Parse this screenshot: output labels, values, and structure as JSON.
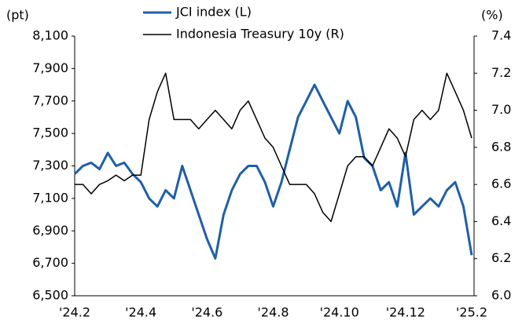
{
  "chart_data": {
    "type": "line",
    "y_unit": "(pt)",
    "y2_unit": "(%)",
    "categories": [
      "'24.2",
      null,
      null,
      null,
      null,
      null,
      null,
      null,
      "'24.4",
      null,
      null,
      null,
      null,
      null,
      null,
      null,
      "'24.6",
      null,
      null,
      null,
      null,
      null,
      null,
      null,
      "'24.8",
      null,
      null,
      null,
      null,
      null,
      null,
      null,
      "'24.10",
      null,
      null,
      null,
      null,
      null,
      null,
      null,
      "'24.12",
      null,
      null,
      null,
      null,
      null,
      null,
      null,
      "'25.2"
    ],
    "series": [
      {
        "name": "JCI index (L)",
        "color": "#1f5fa8",
        "axis": "y",
        "values": [
          7250,
          7300,
          7320,
          7280,
          7380,
          7300,
          7320,
          7250,
          7200,
          7100,
          7050,
          7150,
          7100,
          7300,
          7150,
          7000,
          6850,
          6730,
          7000,
          7150,
          7250,
          7300,
          7300,
          7200,
          7050,
          7200,
          7400,
          7600,
          7700,
          7800,
          7700,
          7600,
          7500,
          7700,
          7600,
          7350,
          7300,
          7150,
          7200,
          7050,
          7380,
          7000,
          7050,
          7100,
          7050,
          7150,
          7200,
          7050,
          6750
        ]
      },
      {
        "name": "Indonesia Treasury 10y (R)",
        "color": "#000000",
        "axis": "y2",
        "values": [
          6.6,
          6.6,
          6.55,
          6.6,
          6.62,
          6.65,
          6.62,
          6.65,
          6.65,
          6.95,
          7.1,
          7.2,
          6.95,
          6.95,
          6.95,
          6.9,
          6.95,
          7.0,
          6.95,
          6.9,
          7.0,
          7.05,
          6.95,
          6.85,
          6.8,
          6.7,
          6.6,
          6.6,
          6.6,
          6.55,
          6.45,
          6.4,
          6.55,
          6.7,
          6.75,
          6.75,
          6.7,
          6.8,
          6.9,
          6.85,
          6.75,
          6.95,
          7.0,
          6.95,
          7.0,
          7.2,
          7.1,
          7.0,
          6.85
        ]
      }
    ],
    "ylim": [
      6500,
      8100
    ],
    "yticks": [
      {
        "value": 6500,
        "label": "6,500"
      },
      {
        "value": 6700,
        "label": "6,700"
      },
      {
        "value": 6900,
        "label": "6,900"
      },
      {
        "value": 7100,
        "label": "7,100"
      },
      {
        "value": 7300,
        "label": "7,300"
      },
      {
        "value": 7500,
        "label": "7,500"
      },
      {
        "value": 7700,
        "label": "7,700"
      },
      {
        "value": 7900,
        "label": "7,900"
      },
      {
        "value": 8100,
        "label": "8,100"
      }
    ],
    "y2lim": [
      6.0,
      7.4
    ],
    "y2ticks": [
      {
        "value": 6.0,
        "label": "6.0"
      },
      {
        "value": 6.2,
        "label": "6.2"
      },
      {
        "value": 6.4,
        "label": "6.4"
      },
      {
        "value": 6.6,
        "label": "6.6"
      },
      {
        "value": 6.8,
        "label": "6.8"
      },
      {
        "value": 7.0,
        "label": "7.0"
      },
      {
        "value": 7.2,
        "label": "7.2"
      },
      {
        "value": 7.4,
        "label": "7.4"
      }
    ],
    "grid": false
  }
}
